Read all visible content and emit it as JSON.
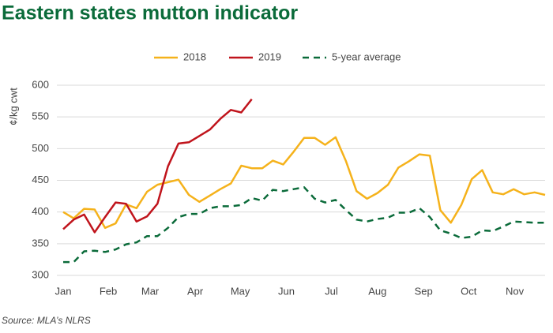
{
  "chart_data": {
    "type": "line",
    "title": "Eastern states mutton indicator",
    "y_label": "¢/kg cwt",
    "source": "Source: MLA’s NLRS",
    "x": [
      1,
      2,
      3,
      4,
      5,
      6,
      7,
      8,
      9,
      10,
      11,
      12,
      13,
      14,
      15,
      16,
      17,
      18,
      19,
      20,
      21,
      22,
      23,
      24,
      25,
      26,
      27,
      28,
      29,
      30,
      31,
      32,
      33,
      34,
      35,
      36,
      37,
      38,
      39,
      40,
      41,
      42,
      43,
      44,
      45,
      46,
      47
    ],
    "xlim": [
      1,
      47
    ],
    "xticks": [
      {
        "value": 1,
        "label": "Jan"
      },
      {
        "value": 5.3,
        "label": "Feb"
      },
      {
        "value": 9.3,
        "label": "Mar"
      },
      {
        "value": 13.6,
        "label": "Apr"
      },
      {
        "value": 17.9,
        "label": "May"
      },
      {
        "value": 22.3,
        "label": "Jun"
      },
      {
        "value": 26.6,
        "label": "Jul"
      },
      {
        "value": 31,
        "label": "Aug"
      },
      {
        "value": 35.4,
        "label": "Sep"
      },
      {
        "value": 39.7,
        "label": "Oct"
      },
      {
        "value": 44.1,
        "label": "Nov"
      }
    ],
    "ylim": [
      300,
      600
    ],
    "yticks": [
      300,
      350,
      400,
      450,
      500,
      550,
      600
    ],
    "grid": true,
    "legend": "top",
    "series": [
      {
        "name": "2018",
        "color": "#f5b21b",
        "dashed": false,
        "values": [
          400,
          390,
          405,
          404,
          375,
          382,
          412,
          406,
          432,
          443,
          447,
          451,
          427,
          416,
          426,
          436,
          445,
          473,
          469,
          469,
          481,
          475,
          495,
          517,
          517,
          506,
          518,
          480,
          433,
          421,
          430,
          443,
          470,
          480,
          491,
          489,
          403,
          383,
          411,
          452,
          466,
          431,
          428,
          436,
          428,
          431,
          427
        ]
      },
      {
        "name": "2019",
        "color": "#c0141c",
        "dashed": false,
        "values": [
          373,
          388,
          396,
          368,
          392,
          415,
          413,
          385,
          393,
          413,
          472,
          508,
          510,
          520,
          530,
          547,
          561,
          557,
          578,
          null,
          null,
          null,
          null,
          null,
          null,
          null,
          null,
          null,
          null,
          null,
          null,
          null,
          null,
          null,
          null,
          null,
          null,
          null,
          null,
          null,
          null,
          null,
          null,
          null,
          null,
          null,
          null
        ]
      },
      {
        "name": "5-year average",
        "color": "#0b6b3a",
        "dashed": true,
        "values": [
          321,
          321,
          338,
          339,
          337,
          341,
          349,
          352,
          362,
          362,
          375,
          392,
          397,
          397,
          406,
          409,
          409,
          411,
          422,
          418,
          435,
          433,
          436,
          439,
          421,
          415,
          419,
          403,
          388,
          385,
          389,
          391,
          399,
          399,
          406,
          392,
          371,
          366,
          359,
          361,
          371,
          370,
          377,
          385,
          384,
          383,
          383
        ]
      }
    ]
  }
}
